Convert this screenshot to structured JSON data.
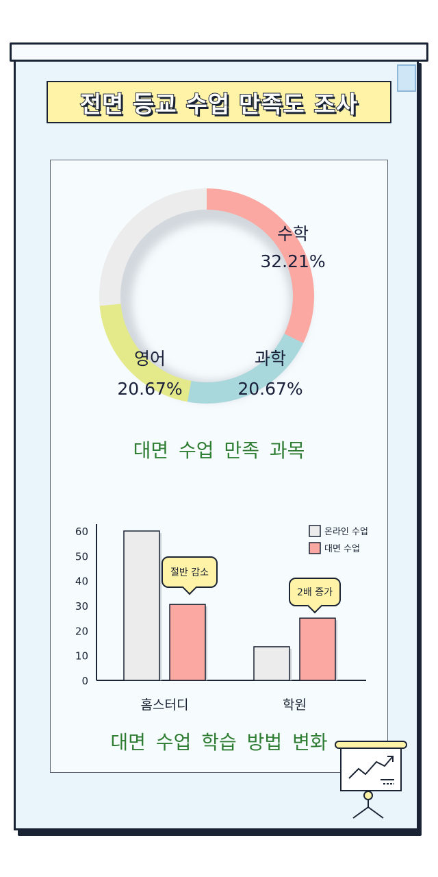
{
  "title": "전면 등교 수업 만족도 조사",
  "colors": {
    "math": "#fba8a2",
    "science": "#a9d8dc",
    "english": "#e4e98a",
    "rest": "#ececec",
    "online": "#ececec",
    "inperson": "#fba8a2",
    "caption": "#2e7d32"
  },
  "chart_data": [
    {
      "type": "pie",
      "subtype": "donut",
      "title": "대면 수업 만족 과목",
      "slices": [
        {
          "label": "수학",
          "value": 32.21,
          "value_label": "32.21%"
        },
        {
          "label": "과학",
          "value": 20.67,
          "value_label": "20.67%"
        },
        {
          "label": "영어",
          "value": 20.67,
          "value_label": "20.67%"
        },
        {
          "label": "",
          "value": 26.45
        }
      ]
    },
    {
      "type": "bar",
      "title": "대면 수업 학습 방법 변화",
      "categories": [
        "홈스터디",
        "학원"
      ],
      "series": [
        {
          "name": "온라인 수업",
          "values": [
            60,
            13.5
          ]
        },
        {
          "name": "대면 수업",
          "values": [
            30.5,
            25
          ]
        }
      ],
      "ylim": [
        0,
        60
      ],
      "yticks": [
        0,
        10,
        20,
        30,
        40,
        50,
        60
      ],
      "legend_position": "top-right",
      "annotations": [
        {
          "text": "절반 감소",
          "category": "홈스터디"
        },
        {
          "text": "2배 증가",
          "category": "학원"
        }
      ]
    }
  ]
}
